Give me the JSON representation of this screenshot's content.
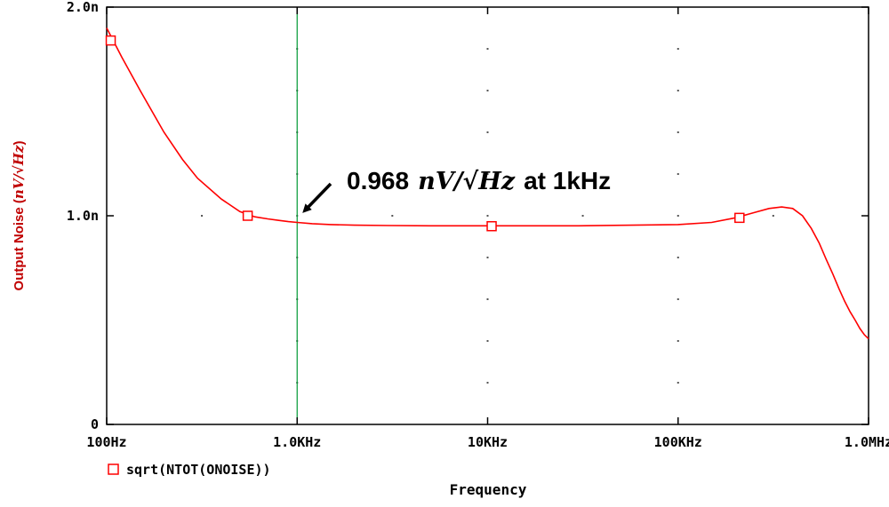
{
  "chart_data": {
    "type": "line",
    "title": "",
    "xlabel": "Frequency",
    "ylabel_prefix": "Output Noise (",
    "ylabel_unit": "nV/√Hz",
    "ylabel_suffix": ")",
    "xscale": "log",
    "xlim": [
      100,
      1000000
    ],
    "ylim": [
      0,
      2.0
    ],
    "x_ticks": [
      100,
      1000,
      10000,
      100000,
      1000000
    ],
    "x_tick_labels": [
      "100Hz",
      "1.0KHz",
      "10KHz",
      "100KHz",
      "1.0MHz"
    ],
    "y_ticks": [
      0,
      1.0,
      2.0
    ],
    "y_tick_labels": [
      "0",
      "1.0n",
      "2.0n"
    ],
    "series": [
      {
        "name": "sqrt(NTOT(ONOISE))",
        "color": "#ff0000",
        "x": [
          100,
          120,
          150,
          200,
          250,
          300,
          400,
          500,
          600,
          700,
          800,
          900,
          1000,
          1200,
          1500,
          2000,
          3000,
          5000,
          10000,
          30000,
          100000,
          150000,
          200000,
          250000,
          300000,
          350000,
          400000,
          450000,
          500000,
          550000,
          600000,
          650000,
          700000,
          750000,
          800000,
          850000,
          900000,
          950000,
          1000000
        ],
        "y": [
          1.9,
          1.76,
          1.6,
          1.4,
          1.27,
          1.18,
          1.08,
          1.02,
          0.995,
          0.985,
          0.978,
          0.972,
          0.968,
          0.962,
          0.958,
          0.955,
          0.953,
          0.952,
          0.952,
          0.952,
          0.958,
          0.968,
          0.99,
          1.015,
          1.035,
          1.042,
          1.035,
          1.0,
          0.94,
          0.87,
          0.79,
          0.72,
          0.65,
          0.59,
          0.54,
          0.5,
          0.46,
          0.43,
          0.41
        ]
      }
    ],
    "markers": [
      {
        "x": 105,
        "y": 1.84
      },
      {
        "x": 550,
        "y": 1.0
      },
      {
        "x": 10500,
        "y": 0.95
      },
      {
        "x": 210000,
        "y": 0.99
      }
    ],
    "cursor_x": 1000,
    "cursor_color": "#009933",
    "grid": "dotted",
    "legend_position": "bottom-left",
    "annotation": {
      "value": "0.968",
      "unit": "nV/√Hz",
      "suffix": "at 1kHz",
      "target_x": 1000,
      "target_y": 0.968
    }
  }
}
